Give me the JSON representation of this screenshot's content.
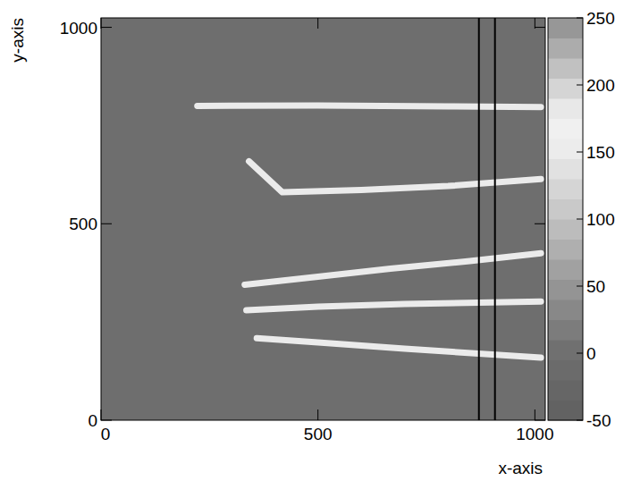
{
  "chart_data": {
    "type": "heatmap",
    "x_label": "x-axis",
    "y_label": "y-axis",
    "xlim": [
      0,
      1024
    ],
    "ylim": [
      0,
      1024
    ],
    "xticks": [
      0,
      500,
      1000
    ],
    "yticks": [
      0,
      500,
      1000
    ],
    "grid": false,
    "background": 0,
    "tracks": [
      {
        "x": [
          222,
          500,
          800,
          1014
        ],
        "y": [
          800,
          801,
          799,
          797
        ],
        "value": 150
      },
      {
        "x": [
          341,
          418,
          600,
          800,
          1014
        ],
        "y": [
          659,
          580,
          586,
          596,
          614
        ],
        "value": 150
      },
      {
        "x": [
          331,
          500,
          667,
          850,
          1014
        ],
        "y": [
          345,
          365,
          386,
          405,
          425
        ],
        "value": 150
      },
      {
        "x": [
          335,
          500,
          700,
          1014
        ],
        "y": [
          280,
          289,
          296,
          302
        ],
        "value": 150
      },
      {
        "x": [
          359,
          500,
          700,
          1014
        ],
        "y": [
          209,
          198,
          182,
          159
        ],
        "value": 150
      }
    ],
    "vlines": [
      871,
      908
    ],
    "colorbar": {
      "range": [
        -50,
        250
      ],
      "ticks": [
        -50,
        0,
        50,
        100,
        150,
        200,
        250
      ]
    }
  }
}
